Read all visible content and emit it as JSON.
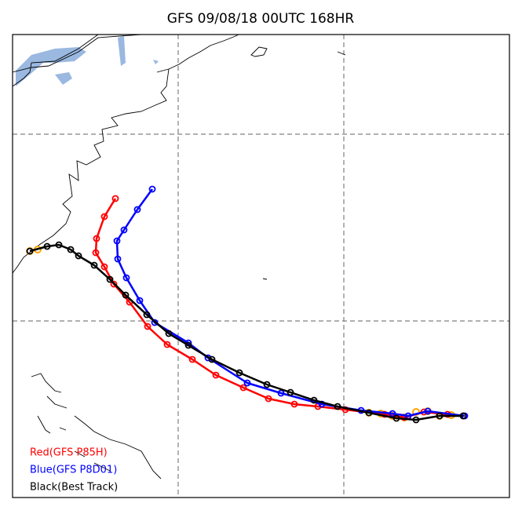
{
  "title": "GFS 09/08/18 00UTC 168HR",
  "legend": [
    {
      "label": "Red(GFS P85H)",
      "color": "#ff0000"
    },
    {
      "label": "Blue(GFS P8D01)",
      "color": "#0000ff"
    },
    {
      "label": "Black(Best Track)",
      "color": "#000000"
    }
  ]
}
